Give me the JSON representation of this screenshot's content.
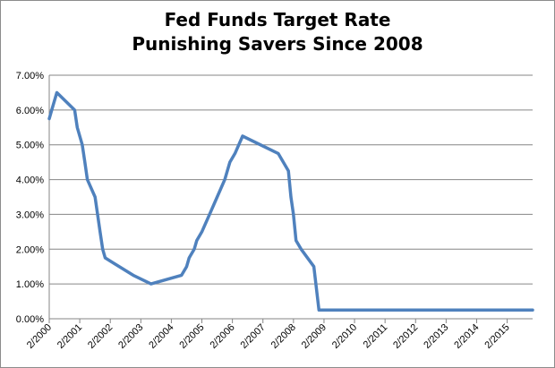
{
  "chart_data": {
    "type": "line",
    "title_lines": [
      "Fed Funds Target Rate",
      "Punishing Savers Since 2008"
    ],
    "xlabel": "",
    "ylabel": "",
    "x_tick_labels": [
      "2/2000",
      "2/2001",
      "2/2002",
      "2/2003",
      "2/2004",
      "2/2005",
      "2/2006",
      "2/2007",
      "2/2008",
      "2/2009",
      "2/2010",
      "2/2011",
      "2/2012",
      "2/2013",
      "2/2014",
      "2/2015"
    ],
    "y_tick_labels": [
      "0.00%",
      "1.00%",
      "2.00%",
      "3.00%",
      "4.00%",
      "5.00%",
      "6.00%",
      "7.00%"
    ],
    "ylim": [
      0,
      7
    ],
    "xlim": [
      "2000-02",
      "2015-12"
    ],
    "grid": "horizontal",
    "legend": "none",
    "series": [
      {
        "color": "#4f81bd",
        "points": [
          [
            "2000-02",
            5.75
          ],
          [
            "2000-03",
            6.0
          ],
          [
            "2000-05",
            6.5
          ],
          [
            "2000-12",
            6.0
          ],
          [
            "2001-01",
            5.5
          ],
          [
            "2001-03",
            5.0
          ],
          [
            "2001-04",
            4.5
          ],
          [
            "2001-05",
            4.0
          ],
          [
            "2001-08",
            3.5
          ],
          [
            "2001-09",
            3.0
          ],
          [
            "2001-10",
            2.5
          ],
          [
            "2001-11",
            2.0
          ],
          [
            "2001-12",
            1.75
          ],
          [
            "2002-11",
            1.25
          ],
          [
            "2003-06",
            1.0
          ],
          [
            "2004-06",
            1.25
          ],
          [
            "2004-08",
            1.5
          ],
          [
            "2004-09",
            1.75
          ],
          [
            "2004-11",
            2.0
          ],
          [
            "2004-12",
            2.25
          ],
          [
            "2005-02",
            2.5
          ],
          [
            "2005-05",
            3.0
          ],
          [
            "2005-08",
            3.5
          ],
          [
            "2005-11",
            4.0
          ],
          [
            "2006-01",
            4.5
          ],
          [
            "2006-03",
            4.75
          ],
          [
            "2006-06",
            5.25
          ],
          [
            "2007-08",
            4.75
          ],
          [
            "2007-10",
            4.5
          ],
          [
            "2007-12",
            4.25
          ],
          [
            "2008-01",
            3.5
          ],
          [
            "2008-02",
            3.0
          ],
          [
            "2008-03",
            2.25
          ],
          [
            "2008-05",
            2.0
          ],
          [
            "2008-10",
            1.5
          ],
          [
            "2008-12",
            0.25
          ],
          [
            "2015-12",
            0.25
          ]
        ]
      }
    ]
  }
}
